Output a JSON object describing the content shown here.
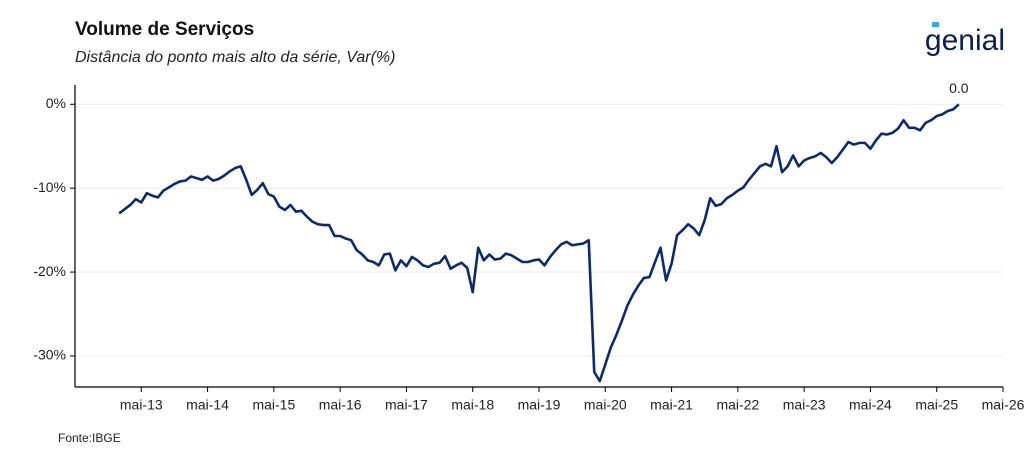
{
  "chart_data": {
    "type": "line",
    "title": "Volume de Serviços",
    "subtitle": "Distância do ponto mais alto da série, Var(%)",
    "source": "Fonte:IBGE",
    "logo": "genial",
    "color": "#0d2b6b",
    "grid": true,
    "x": [
      "2013-01",
      "2013-02",
      "2013-03",
      "2013-04",
      "2013-05",
      "2013-06",
      "2013-07",
      "2013-08",
      "2013-09",
      "2013-10",
      "2013-11",
      "2013-12",
      "2014-01",
      "2014-02",
      "2014-03",
      "2014-04",
      "2014-05",
      "2014-06",
      "2014-07",
      "2014-08",
      "2014-09",
      "2014-10",
      "2014-11",
      "2014-12",
      "2015-01",
      "2015-02",
      "2015-03",
      "2015-04",
      "2015-05",
      "2015-06",
      "2015-07",
      "2015-08",
      "2015-09",
      "2015-10",
      "2015-11",
      "2015-12",
      "2016-01",
      "2016-02",
      "2016-03",
      "2016-04",
      "2016-05",
      "2016-06",
      "2016-07",
      "2016-08",
      "2016-09",
      "2016-10",
      "2016-11",
      "2016-12",
      "2017-01",
      "2017-02",
      "2017-03",
      "2017-04",
      "2017-05",
      "2017-06",
      "2017-07",
      "2017-08",
      "2017-09",
      "2017-10",
      "2017-11",
      "2017-12",
      "2018-01",
      "2018-02",
      "2018-03",
      "2018-04",
      "2018-05",
      "2018-06",
      "2018-07",
      "2018-08",
      "2018-09",
      "2018-10",
      "2018-11",
      "2018-12",
      "2019-01",
      "2019-02",
      "2019-03",
      "2019-04",
      "2019-05",
      "2019-06",
      "2019-07",
      "2019-08",
      "2019-09",
      "2019-10",
      "2019-11",
      "2019-12",
      "2020-01",
      "2020-02",
      "2020-03",
      "2020-04",
      "2020-05",
      "2020-06",
      "2020-07",
      "2020-08",
      "2020-09",
      "2020-10",
      "2020-11",
      "2020-12",
      "2021-01",
      "2021-02",
      "2021-03",
      "2021-04",
      "2021-05",
      "2021-06",
      "2021-07",
      "2021-08",
      "2021-09",
      "2021-10",
      "2021-11",
      "2021-12",
      "2022-01",
      "2022-02",
      "2022-03",
      "2022-04",
      "2022-05",
      "2022-06",
      "2022-07",
      "2022-08",
      "2022-09",
      "2022-10",
      "2022-11",
      "2022-12",
      "2023-01",
      "2023-02",
      "2023-03",
      "2023-04",
      "2023-05",
      "2023-06",
      "2023-07",
      "2023-08",
      "2023-09",
      "2023-10",
      "2023-11",
      "2023-12",
      "2024-01",
      "2024-02",
      "2024-03",
      "2024-04",
      "2024-05",
      "2024-06",
      "2024-07",
      "2024-08",
      "2024-09",
      "2024-10",
      "2024-11",
      "2024-12",
      "2025-01",
      "2025-02",
      "2025-03",
      "2025-04",
      "2025-05",
      "2025-06",
      "2025-07",
      "2025-08",
      "2025-09"
    ],
    "values": [
      -13.0,
      -12.5,
      -12.0,
      -11.3,
      -11.7,
      -10.6,
      -10.9,
      -11.1,
      -10.3,
      -9.9,
      -9.5,
      -9.2,
      -9.1,
      -8.6,
      -8.8,
      -9.0,
      -8.6,
      -9.1,
      -8.9,
      -8.5,
      -8.0,
      -7.6,
      -7.4,
      -9.0,
      -10.8,
      -10.2,
      -9.4,
      -10.7,
      -11.0,
      -12.2,
      -12.6,
      -12.0,
      -12.8,
      -12.7,
      -13.4,
      -14.0,
      -14.3,
      -14.4,
      -14.4,
      -15.7,
      -15.7,
      -16.0,
      -16.2,
      -17.4,
      -17.9,
      -18.6,
      -18.8,
      -19.2,
      -17.9,
      -17.8,
      -19.8,
      -18.6,
      -19.3,
      -18.2,
      -18.6,
      -19.2,
      -19.4,
      -19.0,
      -18.9,
      -18.1,
      -19.6,
      -19.2,
      -18.9,
      -19.5,
      -22.4,
      -17.1,
      -18.6,
      -17.9,
      -18.5,
      -18.4,
      -17.8,
      -18.0,
      -18.4,
      -18.8,
      -18.8,
      -18.6,
      -18.5,
      -19.2,
      -18.2,
      -17.4,
      -16.7,
      -16.4,
      -16.8,
      -16.7,
      -16.6,
      -16.2,
      -31.9,
      -33.0,
      -31.0,
      -29.0,
      -27.5,
      -25.8,
      -24.0,
      -22.7,
      -21.6,
      -20.7,
      -20.6,
      -18.8,
      -17.1,
      -21.0,
      -19.0,
      -15.6,
      -15.0,
      -14.3,
      -14.8,
      -15.6,
      -13.8,
      -11.2,
      -12.1,
      -11.9,
      -11.2,
      -10.8,
      -10.3,
      -9.9,
      -9.0,
      -8.2,
      -7.4,
      -7.1,
      -7.4,
      -5.0,
      -8.1,
      -7.4,
      -6.1,
      -7.4,
      -6.7,
      -6.4,
      -6.2,
      -5.8,
      -6.3,
      -7.0,
      -6.3,
      -5.4,
      -4.5,
      -4.8,
      -4.6,
      -4.6,
      -5.3,
      -4.3,
      -3.5,
      -3.6,
      -3.4,
      -2.9,
      -1.9,
      -2.8,
      -2.8,
      -3.1,
      -2.2,
      -1.9,
      -1.4,
      -1.2,
      -0.8,
      -0.6,
      0.0
    ],
    "value_labels": [
      null,
      null,
      null,
      null,
      null,
      null,
      null,
      null,
      null,
      null,
      null,
      null,
      null,
      null,
      null,
      null,
      null,
      null,
      null,
      null,
      null,
      null,
      null,
      null,
      null,
      null,
      null,
      null,
      null,
      null,
      null,
      null,
      null,
      null,
      null,
      null,
      null,
      null,
      null,
      null,
      null,
      null,
      null,
      null,
      null,
      null,
      null,
      null,
      null,
      null,
      null,
      null,
      null,
      null,
      null,
      null,
      null,
      null,
      null,
      null,
      null,
      null,
      null,
      null,
      null,
      null,
      null,
      null,
      null,
      null,
      null,
      null,
      null,
      null,
      null,
      null,
      null,
      null,
      null,
      null,
      null,
      null,
      null,
      null,
      null,
      null,
      null,
      null,
      null,
      null,
      null,
      null,
      null,
      null,
      null,
      null,
      null,
      null,
      null,
      null,
      null,
      null,
      null,
      null,
      null,
      null,
      null,
      null,
      null,
      null,
      null,
      null,
      null,
      null,
      null,
      null,
      null,
      null,
      null,
      null,
      null,
      null,
      null,
      null,
      null,
      null,
      null,
      null,
      null,
      null,
      null,
      null,
      null,
      null,
      null,
      null,
      null,
      null,
      null,
      null,
      null,
      null,
      null,
      null,
      null,
      null,
      null,
      null,
      null,
      null,
      null,
      null,
      "0.0"
    ],
    "xlim": [
      "2012-05",
      "2026-05"
    ],
    "xticks": [
      {
        "value": "2013-05",
        "label": "mai-13"
      },
      {
        "value": "2014-05",
        "label": "mai-14"
      },
      {
        "value": "2015-05",
        "label": "mai-15"
      },
      {
        "value": "2016-05",
        "label": "mai-16"
      },
      {
        "value": "2017-05",
        "label": "mai-17"
      },
      {
        "value": "2018-05",
        "label": "mai-18"
      },
      {
        "value": "2019-05",
        "label": "mai-19"
      },
      {
        "value": "2020-05",
        "label": "mai-20"
      },
      {
        "value": "2021-05",
        "label": "mai-21"
      },
      {
        "value": "2022-05",
        "label": "mai-22"
      },
      {
        "value": "2023-05",
        "label": "mai-23"
      },
      {
        "value": "2024-05",
        "label": "mai-24"
      },
      {
        "value": "2025-05",
        "label": "mai-25"
      },
      {
        "value": "2026-05",
        "label": "mai-26"
      }
    ],
    "ylim": [
      -33.7,
      2.3
    ],
    "yticks": [
      {
        "value": 0,
        "label": "0%"
      },
      {
        "value": -10,
        "label": "-10%"
      },
      {
        "value": -20,
        "label": "-20%"
      },
      {
        "value": -30,
        "label": "-30%"
      }
    ]
  }
}
